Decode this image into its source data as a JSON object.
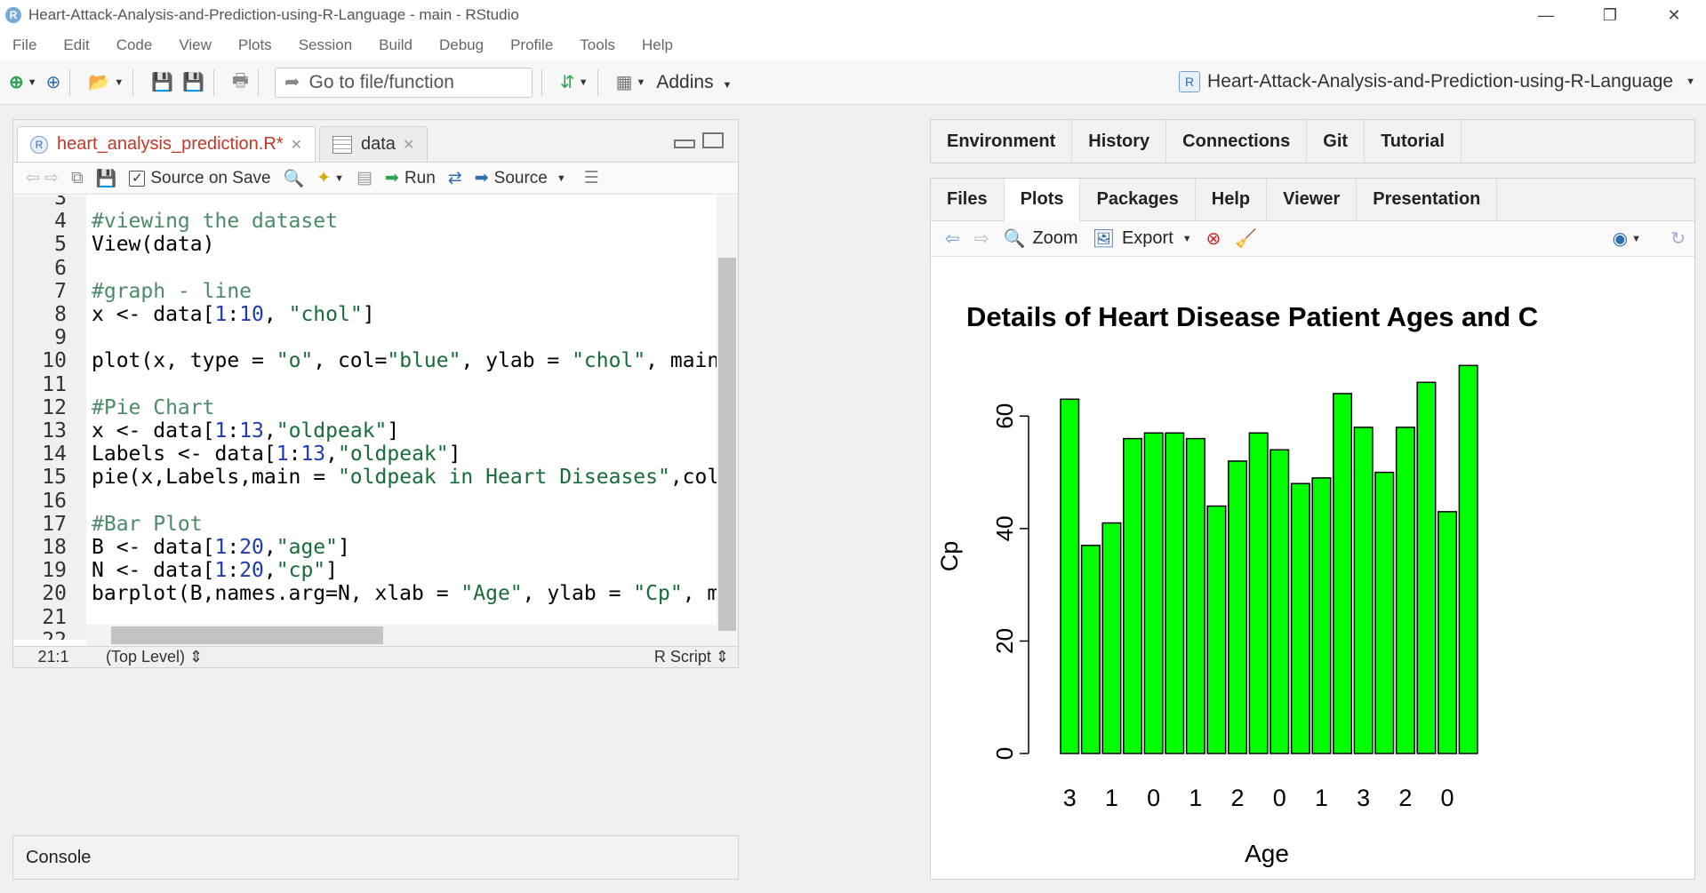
{
  "window": {
    "title": "Heart-Attack-Analysis-and-Prediction-using-R-Language - main - RStudio",
    "minimize": "—",
    "maximize": "❐",
    "close": "✕"
  },
  "menu": [
    "File",
    "Edit",
    "Code",
    "View",
    "Plots",
    "Session",
    "Build",
    "Debug",
    "Profile",
    "Tools",
    "Help"
  ],
  "toolbar": {
    "goto_placeholder": "Go to file/function",
    "addins": "Addins",
    "project": "Heart-Attack-Analysis-and-Prediction-using-R-Language"
  },
  "editor": {
    "tabs": [
      {
        "label": "heart_analysis_prediction.R*"
      },
      {
        "label": "data"
      }
    ],
    "source_on_save": "Source on Save",
    "run": "Run",
    "source": "Source",
    "lines": [
      {
        "n": "3",
        "text": ""
      },
      {
        "n": "4",
        "text": "#viewing the dataset"
      },
      {
        "n": "5",
        "text": "View(data)"
      },
      {
        "n": "6",
        "text": ""
      },
      {
        "n": "7",
        "text": "#graph - line"
      },
      {
        "n": "8",
        "text": "x <- data[1:10, \"chol\"]"
      },
      {
        "n": "9",
        "text": ""
      },
      {
        "n": "10",
        "text": "plot(x, type = \"o\", col=\"blue\", ylab = \"chol\", main ="
      },
      {
        "n": "11",
        "text": ""
      },
      {
        "n": "12",
        "text": "#Pie Chart"
      },
      {
        "n": "13",
        "text": "x <- data[1:13,\"oldpeak\"]"
      },
      {
        "n": "14",
        "text": "Labels <- data[1:13,\"oldpeak\"]"
      },
      {
        "n": "15",
        "text": "pie(x,Labels,main = \"oldpeak in Heart Diseases\",col=ra"
      },
      {
        "n": "16",
        "text": ""
      },
      {
        "n": "17",
        "text": "#Bar Plot"
      },
      {
        "n": "18",
        "text": "B <- data[1:20,\"age\"]"
      },
      {
        "n": "19",
        "text": "N <- data[1:20,\"cp\"]"
      },
      {
        "n": "20",
        "text": "barplot(B,names.arg=N, xlab = \"Age\", ylab = \"Cp\", main"
      },
      {
        "n": "21",
        "text": ""
      },
      {
        "n": "22",
        "text": ""
      }
    ],
    "status": {
      "position": "21:1",
      "scope": "(Top Level)",
      "filetype": "R Script"
    }
  },
  "console": {
    "label": "Console"
  },
  "env_tabs": [
    "Environment",
    "History",
    "Connections",
    "Git",
    "Tutorial"
  ],
  "plots_tabs": [
    "Files",
    "Plots",
    "Packages",
    "Help",
    "Viewer",
    "Presentation"
  ],
  "plots_toolbar": {
    "zoom": "Zoom",
    "export": "Export"
  },
  "chart_data": {
    "type": "bar",
    "title": "Details of Heart Disease  Patient Ages and  C",
    "xlabel": "Age",
    "ylabel": "Cp",
    "ylim": [
      0,
      70
    ],
    "yticks": [
      0,
      20,
      40,
      60
    ],
    "bar_color": "#00ff00",
    "grid": false,
    "values": [
      63,
      37,
      41,
      56,
      57,
      57,
      56,
      44,
      52,
      57,
      54,
      48,
      49,
      64,
      58,
      50,
      58,
      66,
      43,
      69
    ],
    "xtick_labels": [
      "3",
      "1",
      "0",
      "1",
      "2",
      "0",
      "1",
      "3",
      "2",
      "0"
    ]
  }
}
